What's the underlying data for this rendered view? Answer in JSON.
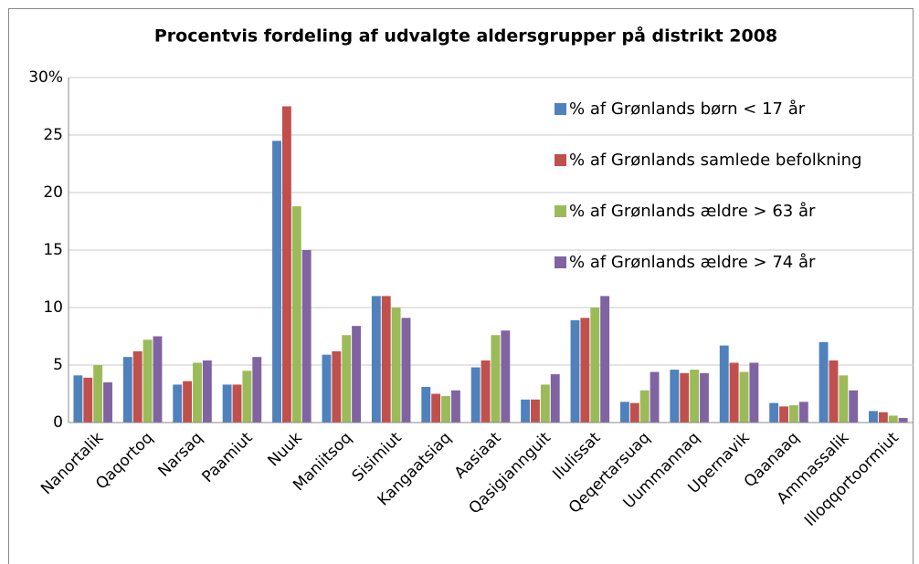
{
  "chart_data": {
    "type": "bar",
    "title": "Procentvis fordeling af udvalgte aldersgrupper på distrikt 2008",
    "categories": [
      "Nanortalik",
      "Qaqortoq",
      "Narsaq",
      "Paamiut",
      "Nuuk",
      "Maniitsoq",
      "Sisimiut",
      "Kangaatsiaq",
      "Aasiaat",
      "Qasigiannguit",
      "Ilulissat",
      "Qeqertarsuaq",
      "Uummannaq",
      "Upernavik",
      "Qaanaaq",
      "Ammassalik",
      "Illoqqortoormiut"
    ],
    "series": [
      {
        "name": "% af Grønlands børn < 17 år",
        "color": "#4f81bd",
        "values": [
          4.1,
          5.7,
          3.3,
          3.3,
          24.5,
          5.9,
          11.0,
          3.1,
          4.8,
          2.0,
          8.9,
          1.8,
          4.6,
          6.7,
          1.7,
          7.0,
          1.0
        ]
      },
      {
        "name": "% af Grønlands samlede befolkning",
        "color": "#c0504d",
        "values": [
          3.9,
          6.2,
          3.6,
          3.3,
          27.5,
          6.2,
          11.0,
          2.5,
          5.4,
          2.0,
          9.1,
          1.7,
          4.3,
          5.2,
          1.4,
          5.4,
          0.9
        ]
      },
      {
        "name": "% af Grønlands ældre > 63 år",
        "color": "#9bbb59",
        "values": [
          5.0,
          7.2,
          5.2,
          4.5,
          18.8,
          7.6,
          10.0,
          2.3,
          7.6,
          3.3,
          10.0,
          2.8,
          4.6,
          4.4,
          1.5,
          4.1,
          0.6
        ]
      },
      {
        "name": "% af Grønlands ældre > 74 år",
        "color": "#8064a2",
        "values": [
          3.5,
          7.5,
          5.4,
          5.7,
          15.0,
          8.4,
          9.1,
          2.8,
          8.0,
          4.2,
          11.0,
          4.4,
          4.3,
          5.2,
          1.8,
          2.8,
          0.4
        ]
      }
    ],
    "ylim": [
      0,
      30
    ],
    "yticks": [
      0,
      5,
      10,
      15,
      20,
      25,
      {
        "value": 30,
        "label": "30%"
      }
    ],
    "grid": true,
    "legend": "top-right"
  }
}
